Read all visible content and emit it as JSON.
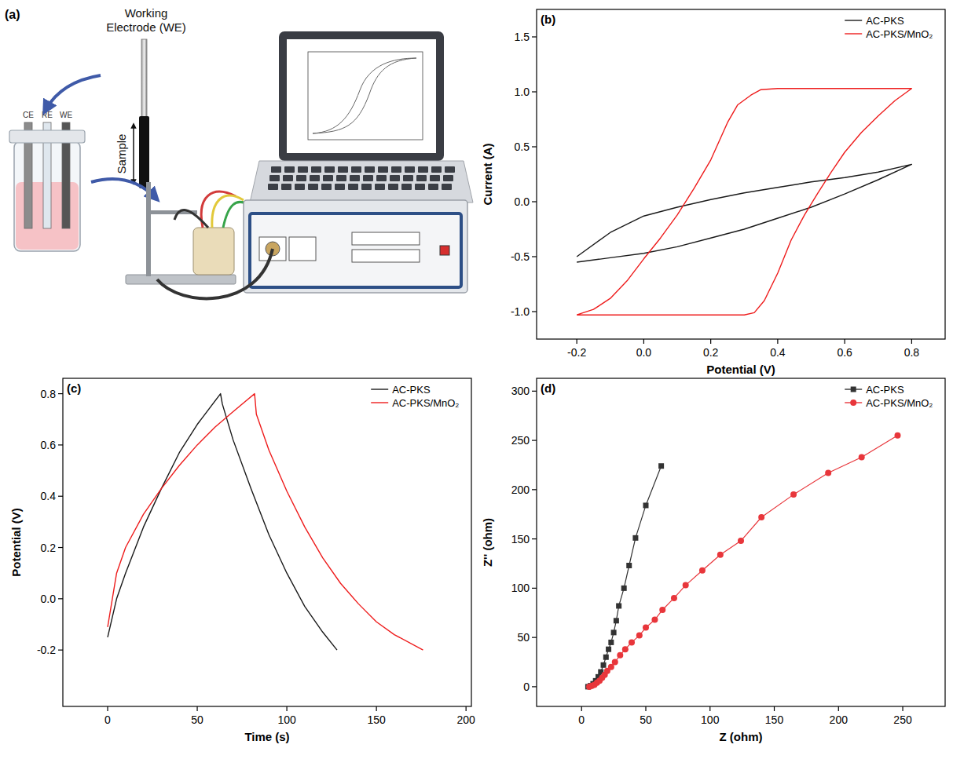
{
  "diagram": {
    "label": "(a)",
    "electrode_label": "Working Electrode (WE)",
    "sample_label": "Sample",
    "cell_labels": [
      "CE",
      "RE",
      "WE"
    ]
  },
  "chart_data": [
    {
      "type": "line",
      "title": "(b)",
      "x_label": "Potential (V)",
      "y_label": "Current (A)",
      "xlim": [
        -0.32,
        0.9
      ],
      "ylim": [
        -1.25,
        1.75
      ],
      "xticks": [
        -0.2,
        {
          "value": 0,
          "label": "0.0"
        },
        0.2,
        0.4,
        0.6,
        0.8
      ],
      "yticks": [
        {
          "value": -1,
          "label": "-1.0"
        },
        -0.5,
        {
          "value": 0,
          "label": "0.0"
        },
        0.5,
        {
          "value": 1,
          "label": "1.0"
        },
        1.5
      ],
      "legend": "top-right",
      "series": [
        {
          "name": "AC-PKS",
          "color": "#1a1a1a",
          "x": [
            -0.2,
            -0.1,
            0,
            0.1,
            0.2,
            0.3,
            0.4,
            0.5,
            0.6,
            0.7,
            0.8,
            0.8,
            0.7,
            0.6,
            0.5,
            0.4,
            0.3,
            0.2,
            0.1,
            0,
            -0.1,
            -0.2
          ],
          "values": [
            -0.5,
            -0.28,
            -0.13,
            -0.05,
            0.02,
            0.08,
            0.13,
            0.18,
            0.22,
            0.27,
            0.34,
            0.34,
            0.2,
            0.07,
            -0.05,
            -0.15,
            -0.25,
            -0.33,
            -0.41,
            -0.47,
            -0.51,
            -0.55
          ]
        },
        {
          "name": "AC-PKS/MnO₂",
          "color": "#ee1c1c",
          "x": [
            -0.2,
            -0.1,
            0,
            0.1,
            0.2,
            0.3,
            0.33,
            0.36,
            0.4,
            0.44,
            0.48,
            0.52,
            0.56,
            0.6,
            0.65,
            0.7,
            0.75,
            0.8,
            0.8,
            0.7,
            0.6,
            0.5,
            0.4,
            0.35,
            0.32,
            0.28,
            0.25,
            0.2,
            0.15,
            0.1,
            0.05,
            0,
            -0.05,
            -0.1,
            -0.15,
            -0.2
          ],
          "values": [
            -1.03,
            -1.03,
            -1.03,
            -1.03,
            -1.03,
            -1.03,
            -1.01,
            -0.9,
            -0.65,
            -0.35,
            -0.12,
            0.08,
            0.27,
            0.45,
            0.63,
            0.78,
            0.92,
            1.03,
            1.03,
            1.03,
            1.03,
            1.03,
            1.03,
            1.02,
            0.97,
            0.88,
            0.72,
            0.38,
            0.12,
            -0.12,
            -0.33,
            -0.52,
            -0.72,
            -0.88,
            -0.98,
            -1.03
          ]
        }
      ]
    },
    {
      "type": "line",
      "title": "(c)",
      "x_label": "Time (s)",
      "y_label": "Potential (V)",
      "xlim": [
        -25,
        203
      ],
      "ylim": [
        -0.42,
        0.86
      ],
      "xticks": [
        0,
        50,
        100,
        150,
        200
      ],
      "yticks": [
        -0.2,
        {
          "value": 0,
          "label": "0.0"
        },
        0.2,
        0.4,
        0.6,
        0.8
      ],
      "legend": "top-right",
      "series": [
        {
          "name": "AC-PKS",
          "color": "#1a1a1a",
          "x": [
            0,
            5,
            10,
            20,
            30,
            40,
            50,
            63,
            64,
            70,
            80,
            90,
            100,
            110,
            120,
            128
          ],
          "values": [
            -0.15,
            0,
            0.1,
            0.28,
            0.43,
            0.57,
            0.68,
            0.8,
            0.76,
            0.62,
            0.43,
            0.25,
            0.1,
            -0.03,
            -0.13,
            -0.2
          ]
        },
        {
          "name": "AC-PKS/MnO₂",
          "color": "#ee1c1c",
          "x": [
            0,
            5,
            10,
            20,
            30,
            40,
            50,
            60,
            70,
            82,
            83,
            90,
            100,
            110,
            120,
            130,
            140,
            150,
            160,
            176
          ],
          "values": [
            -0.11,
            0.1,
            0.2,
            0.33,
            0.43,
            0.52,
            0.6,
            0.67,
            0.73,
            0.8,
            0.72,
            0.58,
            0.42,
            0.28,
            0.16,
            0.06,
            -0.02,
            -0.09,
            -0.14,
            -0.2
          ]
        }
      ]
    },
    {
      "type": "line",
      "title": "(d)",
      "x_label": "Z (ohm)",
      "y_label": "Z'' (ohm)",
      "xlim": [
        -35,
        283
      ],
      "ylim": [
        -20,
        313
      ],
      "xticks": [
        0,
        50,
        100,
        150,
        200,
        250
      ],
      "yticks": [
        0,
        50,
        100,
        150,
        200,
        250,
        300
      ],
      "legend": "top-right",
      "series": [
        {
          "name": "AC-PKS",
          "color": "#333333",
          "marker": "square",
          "x": [
            5,
            7,
            9,
            11,
            13,
            15,
            17,
            19,
            21,
            23,
            25,
            27,
            29,
            33,
            37,
            42,
            50,
            62
          ],
          "values": [
            0,
            1,
            3,
            6,
            10,
            15,
            22,
            30,
            38,
            45,
            55,
            67,
            82,
            100,
            123,
            151,
            184,
            224
          ]
        },
        {
          "name": "AC-PKS/MnO₂",
          "color": "#e8363b",
          "marker": "circle",
          "x": [
            6,
            8,
            10,
            12,
            14,
            16,
            18,
            20,
            23,
            26,
            30,
            34,
            39,
            45,
            50,
            57,
            63,
            72,
            81,
            94,
            108,
            124,
            140,
            165,
            192,
            218,
            246
          ],
          "values": [
            0,
            1,
            2,
            4,
            6,
            9,
            12,
            16,
            20,
            25,
            32,
            38,
            45,
            52,
            60,
            68,
            78,
            90,
            103,
            118,
            134,
            148,
            172,
            195,
            217,
            233,
            255
          ]
        }
      ]
    }
  ]
}
